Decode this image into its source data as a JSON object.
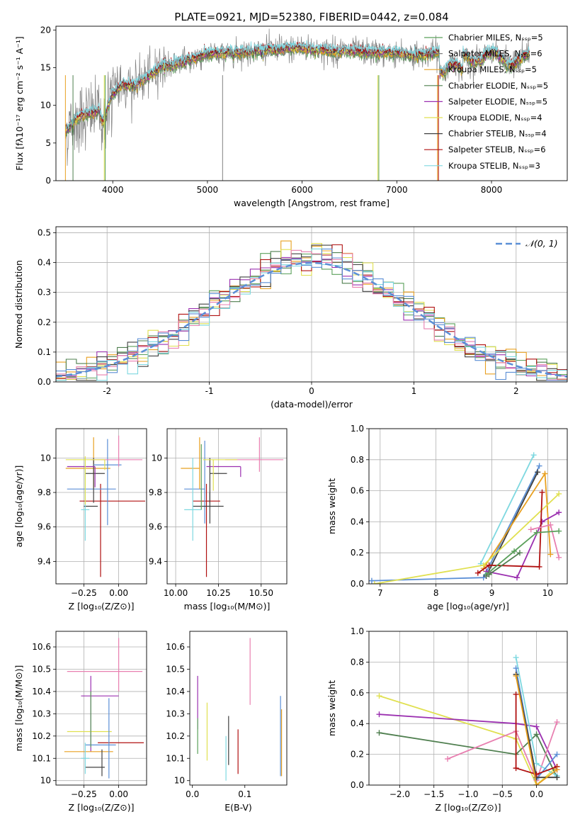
{
  "figure": {
    "title": "PLATE=0921, MJD=52380, FIBERID=0442, z=0.084"
  },
  "chart_data": [
    {
      "id": "spectrum",
      "type": "line",
      "xlabel": "wavelength [Angstrom, rest frame]",
      "ylabel": "Flux [fλ10⁻¹⁷ erg cm⁻² s⁻¹ A⁻¹]",
      "xlim": [
        3400,
        8800
      ],
      "ylim": [
        0,
        20.5
      ],
      "xticks": [
        4000,
        5000,
        6000,
        7000,
        8000
      ],
      "yticks": [
        0,
        5,
        10,
        15,
        20
      ],
      "grid": false,
      "legend_position": "right",
      "data_color": "#808080",
      "continuum_x": [
        3500,
        3600,
        3700,
        3800,
        3850,
        3900,
        3950,
        4000,
        4100,
        4200,
        4300,
        4400,
        4500,
        4600,
        4800,
        5000,
        5200,
        5400,
        5600,
        5800,
        6000,
        6200,
        6400,
        6600,
        6800,
        7000,
        7200,
        7300,
        7450
      ],
      "continuum_y": [
        6.5,
        8.0,
        8.8,
        9.0,
        9.3,
        7.5,
        10.0,
        11.5,
        12.8,
        12.6,
        13.2,
        14.0,
        15.2,
        15.3,
        16.0,
        16.8,
        16.9,
        17.1,
        17.3,
        17.4,
        17.6,
        17.3,
        17.2,
        17.1,
        17.0,
        16.9,
        16.6,
        16.8,
        17.0
      ],
      "series": [
        {
          "name": "Chabrier MILES, N_SSP=5",
          "color": "#5ba05b"
        },
        {
          "name": "Salpeter MILES, N_SSP=6",
          "color": "#7f7f7f"
        },
        {
          "name": "Kroupa MILES, N_SSP=5",
          "color": "#e8a020"
        },
        {
          "name": "Chabrier ELODIE, N_SSP=5",
          "color": "#4f7f4f"
        },
        {
          "name": "Salpeter ELODIE, N_SSP=5",
          "color": "#9b30b0"
        },
        {
          "name": "Kroupa ELODIE, N_SSP=4",
          "color": "#e0e050"
        },
        {
          "name": "Chabrier STELIB, N_SSP=4",
          "color": "#404040"
        },
        {
          "name": "Salpeter STELIB, N_SSP=6",
          "color": "#b01010"
        },
        {
          "name": "Kroupa STELIB, N_SSP=3",
          "color": "#7ed8e0"
        }
      ]
    },
    {
      "id": "residuals",
      "type": "line",
      "xlabel": "(data-model)/error",
      "ylabel": "Normed distribution",
      "xlim": [
        -2.5,
        2.5
      ],
      "ylim": [
        0,
        0.52
      ],
      "xticks": [
        -2,
        -1,
        0,
        1,
        2
      ],
      "yticks": [
        0.0,
        0.1,
        0.2,
        0.3,
        0.4,
        0.5
      ],
      "grid": true,
      "legend_position": "top-right",
      "reference": {
        "name": "𝒩(0, 1)",
        "color": "#5b8fd6",
        "mu": 0,
        "sigma": 1
      },
      "hist_colors": [
        "#5ba05b",
        "#e8a020",
        "#4f7f4f",
        "#9b30b0",
        "#e0e050",
        "#404040",
        "#b01010",
        "#7ed8e0",
        "#e87fb0",
        "#5b8fd6"
      ],
      "bin_width": 0.1,
      "bins_from": -2.5
    },
    {
      "id": "age-vs-Z",
      "type": "scatter",
      "xlabel": "Z [log₁₀(Z/Z⊙)]",
      "ylabel": "age  [log₁₀(age/yr)]",
      "xlim": [
        -0.45,
        0.2
      ],
      "ylim": [
        9.27,
        10.17
      ],
      "xticks": [
        -0.25,
        0.0
      ],
      "xticklabels": [
        "−0.25",
        "0.00"
      ],
      "yticks": [
        9.4,
        9.6,
        9.8,
        10.0
      ],
      "grid": true,
      "points": [
        {
          "x": -0.13,
          "y": 9.75,
          "xerr": [
            0.15,
            0.32
          ],
          "yerr": [
            0.44,
            0.1
          ],
          "color": "#b01010"
        },
        {
          "x": -0.15,
          "y": 9.82,
          "xerr": [
            0.22,
            0.13
          ],
          "yerr": [
            0.0,
            0.0
          ],
          "color": "#5b8fd6"
        },
        {
          "x": -0.18,
          "y": 9.94,
          "xerr": [
            0.2,
            0.12
          ],
          "yerr": [
            0.12,
            0.18
          ],
          "color": "#e8a020"
        },
        {
          "x": -0.18,
          "y": 9.91,
          "xerr": [
            0.06,
            0.08
          ],
          "yerr": [
            0.17,
            0.09
          ],
          "color": "#404040"
        },
        {
          "x": -0.08,
          "y": 9.96,
          "xerr": [
            0.1,
            0.1
          ],
          "yerr": [
            0.35,
            0.15
          ],
          "color": "#5b8fd6"
        },
        {
          "x": 0.0,
          "y": 9.99,
          "xerr": [
            0.2,
            0.17
          ],
          "yerr": [
            0.04,
            0.14
          ],
          "color": "#e87fb0"
        },
        {
          "x": -0.17,
          "y": 9.95,
          "xerr": [
            0.2,
            0.0
          ],
          "yerr": [
            0.12,
            0.0
          ],
          "color": "#9b30b0"
        },
        {
          "x": -0.2,
          "y": 9.72,
          "xerr": [
            0.05,
            0.05
          ],
          "yerr": [
            0.0,
            0.0
          ],
          "color": "#404040"
        },
        {
          "x": -0.24,
          "y": 9.7,
          "xerr": [
            0.03,
            0.03
          ],
          "yerr": [
            0.18,
            0.3
          ],
          "color": "#7ed8e0"
        },
        {
          "x": -0.1,
          "y": 9.99,
          "xerr": [
            0.28,
            0.0
          ],
          "yerr": [
            0.06,
            0.0
          ],
          "color": "#e0e050"
        },
        {
          "x": -0.24,
          "y": 9.85,
          "xerr": [
            0.0,
            0.0
          ],
          "yerr": [
            0.12,
            0.16
          ],
          "color": "#e0e050"
        }
      ]
    },
    {
      "id": "age-vs-mass",
      "type": "scatter",
      "xlabel": "mass [log₁₀(M/M⊙)]",
      "ylabel": "",
      "xlim": [
        9.95,
        10.65
      ],
      "ylim": [
        9.27,
        10.17
      ],
      "xticks": [
        10.0,
        10.25,
        10.5
      ],
      "xticklabels": [
        "10.00",
        "10.25",
        "10.50"
      ],
      "yticks": [
        9.4,
        9.6,
        9.8,
        10.0
      ],
      "grid": true,
      "points": [
        {
          "x": 10.18,
          "y": 9.75,
          "xerr": [
            0.08,
            0.08
          ],
          "yerr": [
            0.44,
            0.1
          ],
          "color": "#b01010"
        },
        {
          "x": 10.17,
          "y": 9.82,
          "xerr": [
            0.12,
            0.0
          ],
          "yerr": [
            0.2,
            0.28
          ],
          "color": "#5b8fd6"
        },
        {
          "x": 10.14,
          "y": 9.94,
          "xerr": [
            0.11,
            0.0
          ],
          "yerr": [
            0.12,
            0.18
          ],
          "color": "#e8a020"
        },
        {
          "x": 10.2,
          "y": 9.91,
          "xerr": [
            0.0,
            0.1
          ],
          "yerr": [
            0.17,
            0.09
          ],
          "color": "#404040"
        },
        {
          "x": 10.2,
          "y": 9.72,
          "xerr": [
            0.1,
            0.08
          ],
          "yerr": [
            0.1,
            0.08
          ],
          "color": "#404040"
        },
        {
          "x": 10.49,
          "y": 9.99,
          "xerr": [
            0.2,
            0.14
          ],
          "yerr": [
            0.07,
            0.13
          ],
          "color": "#e87fb0"
        },
        {
          "x": 10.38,
          "y": 9.95,
          "xerr": [
            0.2,
            0.0
          ],
          "yerr": [
            0.0,
            0.0
          ],
          "color": "#9b30b0"
        },
        {
          "x": 10.38,
          "y": 9.95,
          "xerr": [
            0.0,
            0.0
          ],
          "yerr": [
            0.06,
            0.0
          ],
          "color": "#9b30b0"
        },
        {
          "x": 10.1,
          "y": 9.7,
          "xerr": [
            0.05,
            0.05
          ],
          "yerr": [
            0.18,
            0.3
          ],
          "color": "#7ed8e0"
        },
        {
          "x": 10.22,
          "y": 9.99,
          "xerr": [
            0.06,
            0.14
          ],
          "yerr": [
            0.18,
            0.0
          ],
          "color": "#e0e050"
        },
        {
          "x": 10.15,
          "y": 9.9,
          "xerr": [
            0.0,
            0.0
          ],
          "yerr": [
            0.2,
            0.18
          ],
          "color": "#5ba05b"
        }
      ]
    },
    {
      "id": "weight-vs-age",
      "type": "line",
      "xlabel": "age  [log₁₀(age/yr)]",
      "ylabel": "mass weight",
      "xlim": [
        6.8,
        10.35
      ],
      "ylim": [
        0,
        1.0
      ],
      "xticks": [
        7,
        8,
        9,
        10
      ],
      "yticks": [
        0.0,
        0.2,
        0.4,
        0.6,
        0.8,
        1.0
      ],
      "grid": true,
      "series": [
        {
          "color": "#7ed8e0",
          "x": [
            8.8,
            9.75
          ],
          "y": [
            0.13,
            0.83
          ]
        },
        {
          "color": "#5b8fd6",
          "x": [
            6.85,
            8.85,
            9.85
          ],
          "y": [
            0.02,
            0.04,
            0.76
          ]
        },
        {
          "color": "#404040",
          "x": [
            8.9,
            9.82
          ],
          "y": [
            0.05,
            0.72
          ]
        },
        {
          "color": "#e8a020",
          "x": [
            8.85,
            9.95,
            10.05
          ],
          "y": [
            0.1,
            0.71,
            0.19
          ]
        },
        {
          "color": "#e0e050",
          "x": [
            6.9,
            8.85,
            10.2
          ],
          "y": [
            0.0,
            0.12,
            0.58
          ]
        },
        {
          "color": "#9b30b0",
          "x": [
            8.9,
            9.45,
            9.9,
            10.2
          ],
          "y": [
            0.08,
            0.04,
            0.4,
            0.46
          ]
        },
        {
          "color": "#b01010",
          "x": [
            8.75,
            8.95,
            9.85,
            9.9
          ],
          "y": [
            0.07,
            0.12,
            0.11,
            0.59
          ]
        },
        {
          "color": "#e87fb0",
          "x": [
            9.7,
            10.05,
            10.2
          ],
          "y": [
            0.35,
            0.38,
            0.17
          ]
        },
        {
          "color": "#5ba05b",
          "x": [
            8.9,
            9.4,
            9.8,
            10.2
          ],
          "y": [
            0.06,
            0.21,
            0.33,
            0.34
          ]
        },
        {
          "color": "#4f7f4f",
          "x": [
            8.95,
            9.5
          ],
          "y": [
            0.06,
            0.2
          ]
        }
      ]
    },
    {
      "id": "mass-vs-Z",
      "type": "scatter",
      "xlabel": "Z [log₁₀(Z/Z⊙)]",
      "ylabel": "mass [log₁₀(M/M⊙)]",
      "xlim": [
        -0.45,
        0.2
      ],
      "ylim": [
        9.98,
        10.67
      ],
      "xticks": [
        -0.25,
        0.0
      ],
      "xticklabels": [
        "−0.25",
        "0.00"
      ],
      "yticks": [
        10.0,
        10.1,
        10.2,
        10.3,
        10.4,
        10.5,
        10.6
      ],
      "grid": true,
      "points": [
        {
          "x": 0.0,
          "y": 10.49,
          "xerr": [
            0.37,
            0.17
          ],
          "yerr": [
            0.09,
            0.15
          ],
          "color": "#e87fb0"
        },
        {
          "x": -0.15,
          "y": 10.38,
          "xerr": [
            0.12,
            0.15
          ],
          "yerr": [
            0.0,
            0.0
          ],
          "color": "#9b30b0"
        },
        {
          "x": -0.2,
          "y": 10.25,
          "xerr": [
            0.0,
            0.0
          ],
          "yerr": [
            0.12,
            0.22
          ],
          "color": "#9b30b0"
        },
        {
          "x": -0.1,
          "y": 10.17,
          "xerr": [
            0.05,
            0.28
          ],
          "yerr": [
            0.0,
            0.0
          ],
          "color": "#b01010"
        },
        {
          "x": -0.19,
          "y": 10.13,
          "xerr": [
            0.2,
            0.15
          ],
          "yerr": [
            0.0,
            0.0
          ],
          "color": "#e8a020"
        },
        {
          "x": -0.1,
          "y": 10.22,
          "xerr": [
            0.27,
            0.05
          ],
          "yerr": [
            0.0,
            0.0
          ],
          "color": "#e0e050"
        },
        {
          "x": -0.07,
          "y": 10.16,
          "xerr": [
            0.17,
            0.05
          ],
          "yerr": [
            0.15,
            0.21
          ],
          "color": "#5b8fd6"
        },
        {
          "x": -0.17,
          "y": 10.06,
          "xerr": [
            0.07,
            0.07
          ],
          "yerr": [
            0.0,
            0.0
          ],
          "color": "#404040"
        },
        {
          "x": -0.12,
          "y": 10.08,
          "xerr": [
            0.0,
            0.0
          ],
          "yerr": [
            0.06,
            0.06
          ],
          "color": "#404040"
        },
        {
          "x": -0.2,
          "y": 10.2,
          "xerr": [
            0.0,
            0.0
          ],
          "yerr": [
            0.05,
            0.2
          ],
          "color": "#5ba05b"
        },
        {
          "x": -0.24,
          "y": 10.1,
          "xerr": [
            0.03,
            0.03
          ],
          "yerr": [
            0.07,
            0.07
          ],
          "color": "#7ed8e0"
        }
      ]
    },
    {
      "id": "mass-vs-ebv",
      "type": "scatter",
      "xlabel": "E(B-V)",
      "ylabel": "",
      "xlim": [
        -0.005,
        0.18
      ],
      "ylim": [
        9.98,
        10.67
      ],
      "xticks": [
        0.0,
        0.1
      ],
      "xticklabels": [
        "0.0",
        "0.1"
      ],
      "yticks": [
        10.0,
        10.1,
        10.2,
        10.3,
        10.4,
        10.5,
        10.6
      ],
      "grid": false,
      "points": [
        {
          "x": 0.01,
          "y": 10.35,
          "yerr": [
            0.12,
            0.12
          ],
          "color": "#9b30b0"
        },
        {
          "x": 0.01,
          "y": 10.2,
          "yerr": [
            0.08,
            0.08
          ],
          "color": "#5ba05b"
        },
        {
          "x": 0.028,
          "y": 10.22,
          "yerr": [
            0.13,
            0.13
          ],
          "color": "#e0e050"
        },
        {
          "x": 0.064,
          "y": 10.1,
          "yerr": [
            0.1,
            0.1
          ],
          "color": "#7ed8e0"
        },
        {
          "x": 0.069,
          "y": 10.18,
          "yerr": [
            0.11,
            0.11
          ],
          "color": "#404040"
        },
        {
          "x": 0.087,
          "y": 10.13,
          "yerr": [
            0.1,
            0.1
          ],
          "color": "#b01010"
        },
        {
          "x": 0.11,
          "y": 10.49,
          "yerr": [
            0.15,
            0.15
          ],
          "color": "#e87fb0"
        },
        {
          "x": 0.168,
          "y": 10.2,
          "yerr": [
            0.18,
            0.18
          ],
          "color": "#5b8fd6"
        },
        {
          "x": 0.17,
          "y": 10.17,
          "yerr": [
            0.15,
            0.15
          ],
          "color": "#e8a020"
        }
      ]
    },
    {
      "id": "weight-vs-Z",
      "type": "line",
      "xlabel": "Z [log₁₀(Z/Z⊙)]",
      "ylabel": "mass weight",
      "xlim": [
        -2.45,
        0.45
      ],
      "ylim": [
        0,
        1.0
      ],
      "xticks": [
        -2.0,
        -1.5,
        -1.0,
        -0.5,
        0.0
      ],
      "xticklabels": [
        "−2.0",
        "−1.5",
        "−1.0",
        "−0.5",
        "0.0"
      ],
      "yticks": [
        0.0,
        0.2,
        0.4,
        0.6,
        0.8,
        1.0
      ],
      "grid": true,
      "series": [
        {
          "color": "#e0e050",
          "x": [
            -2.3,
            -0.3,
            0.0,
            0.3
          ],
          "y": [
            0.58,
            0.3,
            0.0,
            0.12
          ]
        },
        {
          "color": "#9b30b0",
          "x": [
            -2.3,
            -0.3,
            0.0,
            0.3
          ],
          "y": [
            0.46,
            0.4,
            0.38,
            0.1
          ]
        },
        {
          "color": "#4f7f4f",
          "x": [
            -2.3,
            -0.3,
            0.0,
            0.3
          ],
          "y": [
            0.34,
            0.2,
            0.33,
            0.05
          ]
        },
        {
          "color": "#e87fb0",
          "x": [
            -1.3,
            -0.3,
            0.0,
            0.3
          ],
          "y": [
            0.17,
            0.35,
            0.03,
            0.41
          ]
        },
        {
          "color": "#7ed8e0",
          "x": [
            -0.3,
            0.0,
            0.3
          ],
          "y": [
            0.83,
            0.14,
            0.06
          ]
        },
        {
          "color": "#5b8fd6",
          "x": [
            -0.3,
            0.0,
            0.3
          ],
          "y": [
            0.76,
            0.04,
            0.2
          ]
        },
        {
          "color": "#404040",
          "x": [
            -0.3,
            0.0,
            0.3
          ],
          "y": [
            0.72,
            0.05,
            0.05
          ]
        },
        {
          "color": "#b01010",
          "x": [
            -0.3,
            -0.3,
            0.0,
            0.3
          ],
          "y": [
            0.59,
            0.11,
            0.07,
            0.12
          ]
        },
        {
          "color": "#e8a020",
          "x": [
            -0.3,
            0.0,
            0.3
          ],
          "y": [
            0.71,
            0.0,
            0.1
          ]
        }
      ]
    }
  ]
}
